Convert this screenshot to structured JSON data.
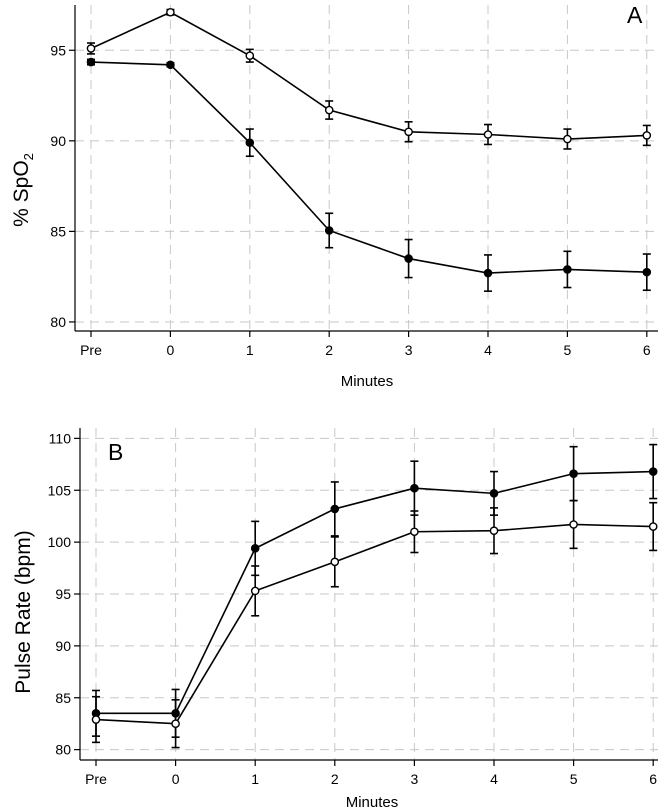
{
  "chart_data": [
    {
      "type": "line",
      "panel": "A",
      "xlabel": "Minutes",
      "ylabel": "% SpO",
      "ylabel_subscript": "2",
      "categories": [
        "Pre",
        "0",
        "1",
        "2",
        "3",
        "4",
        "5",
        "6"
      ],
      "ylim": [
        79.5,
        97.5
      ],
      "yticks": [
        80,
        85,
        90,
        95
      ],
      "grid": true,
      "series": [
        {
          "name": "open",
          "marker": "open-circle",
          "values": [
            95.1,
            97.1,
            94.7,
            91.7,
            90.5,
            90.35,
            90.1,
            90.3
          ],
          "errors": [
            0.3,
            0.15,
            0.35,
            0.5,
            0.55,
            0.55,
            0.55,
            0.55
          ]
        },
        {
          "name": "filled",
          "marker": "filled-circle",
          "values": [
            94.35,
            94.2,
            89.9,
            85.05,
            83.5,
            82.7,
            82.9,
            82.75
          ],
          "errors": [
            0.15,
            0.1,
            0.75,
            0.95,
            1.05,
            1.0,
            1.0,
            1.0
          ]
        }
      ]
    },
    {
      "type": "line",
      "panel": "B",
      "xlabel": "Minutes",
      "ylabel": "Pulse Rate (bpm)",
      "categories": [
        "Pre",
        "0",
        "1",
        "2",
        "3",
        "4",
        "5",
        "6"
      ],
      "ylim": [
        79,
        111
      ],
      "yticks": [
        80,
        85,
        90,
        95,
        100,
        105,
        110
      ],
      "grid": true,
      "series": [
        {
          "name": "filled",
          "marker": "filled-circle",
          "values": [
            83.5,
            83.5,
            99.4,
            103.2,
            105.2,
            104.7,
            106.6,
            106.8
          ],
          "errors": [
            2.2,
            2.3,
            2.6,
            2.6,
            2.6,
            2.1,
            2.6,
            2.6
          ]
        },
        {
          "name": "open",
          "marker": "open-circle",
          "values": [
            82.9,
            82.5,
            95.3,
            98.1,
            101.0,
            101.1,
            101.7,
            101.5
          ],
          "errors": [
            2.2,
            2.3,
            2.4,
            2.4,
            2.0,
            2.2,
            2.3,
            2.3
          ]
        }
      ]
    }
  ]
}
